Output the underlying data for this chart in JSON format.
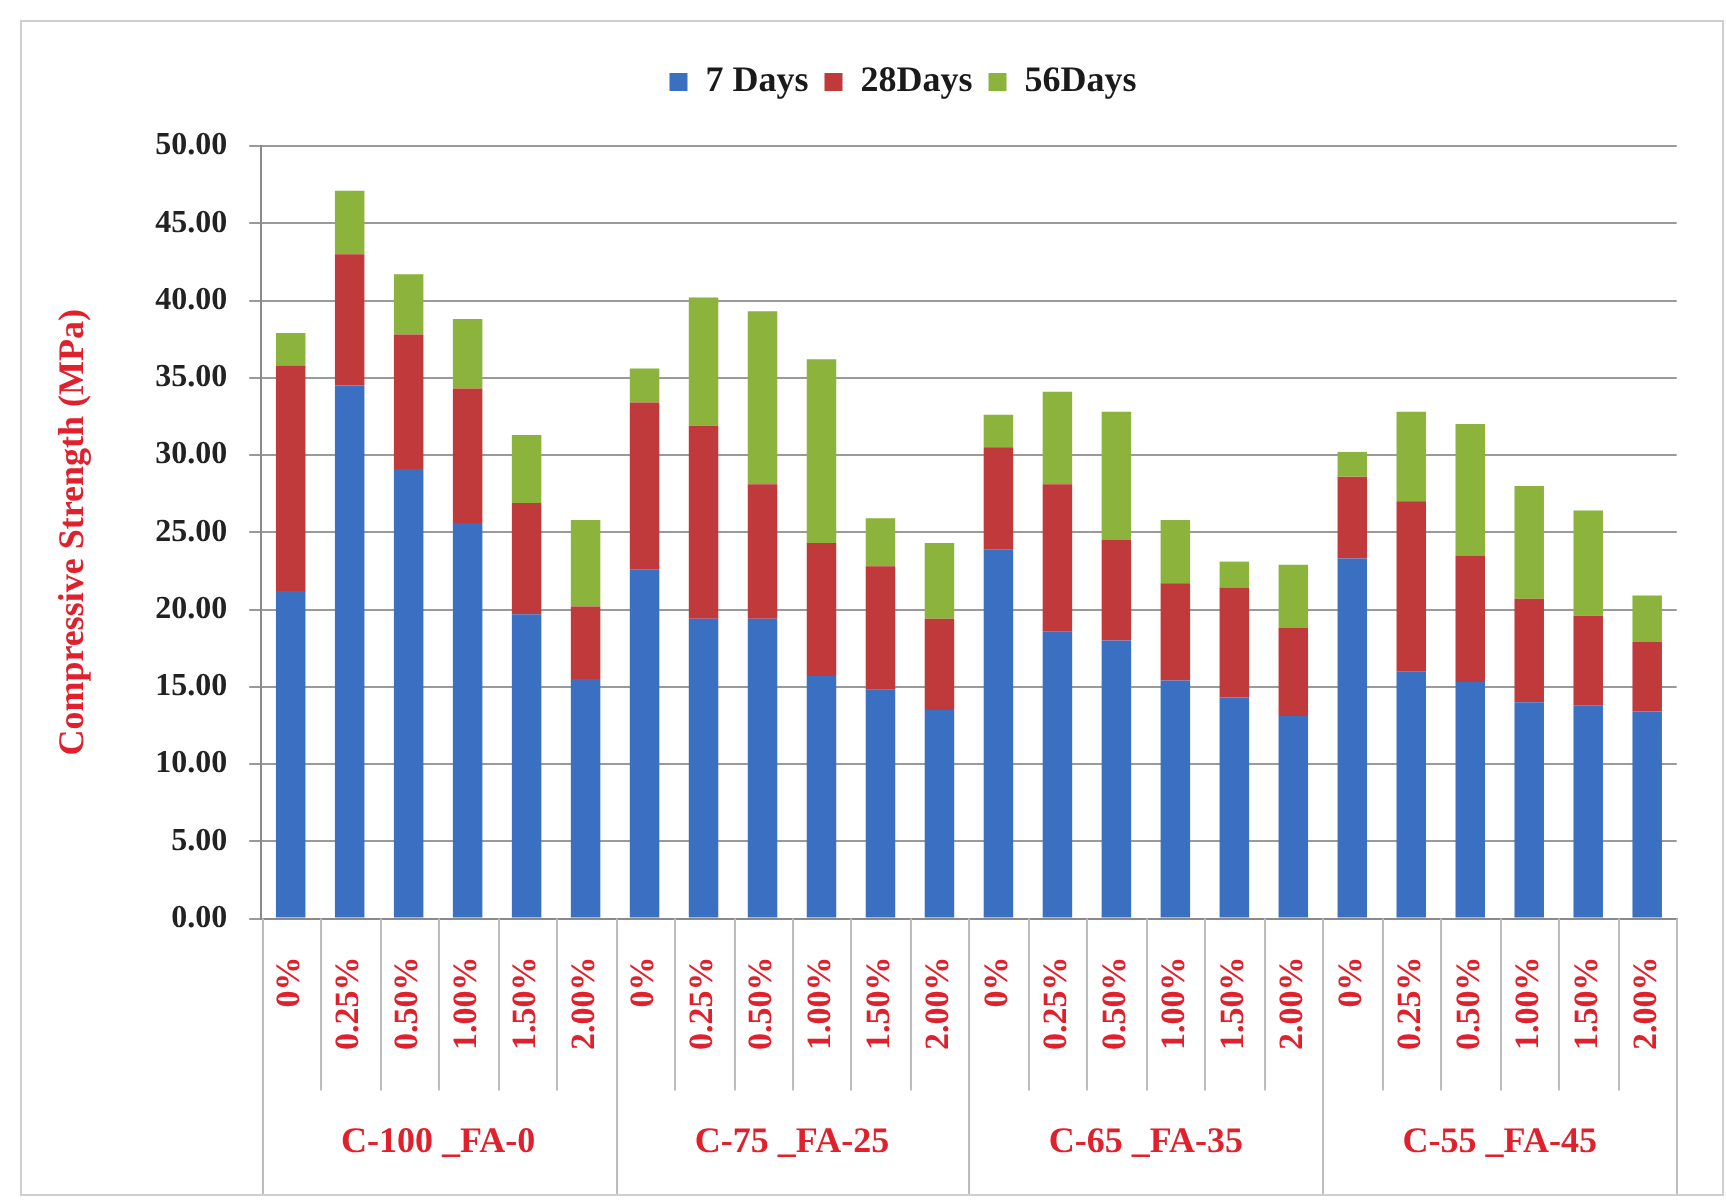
{
  "chart_data": {
    "type": "bar",
    "stacked": true,
    "categories": [
      "0%",
      "0.25%",
      "0.50%",
      "1.00%",
      "1.50%",
      "2.00%",
      "0%",
      "0.25%",
      "0.50%",
      "1.00%",
      "1.50%",
      "2.00%",
      "0%",
      "0.25%",
      "0.50%",
      "1.00%",
      "1.50%",
      "2.00%",
      "0%",
      "0.25%",
      "0.50%",
      "1.00%",
      "1.50%",
      "2.00%"
    ],
    "series": [
      {
        "name": "7 Days",
        "color": "#3a6fc2",
        "values": [
          21.2,
          34.5,
          29.1,
          25.6,
          19.7,
          15.5,
          22.6,
          19.4,
          19.4,
          15.7,
          14.8,
          13.5,
          23.9,
          18.6,
          18.0,
          15.4,
          14.3,
          13.1,
          23.3,
          16.0,
          15.3,
          14.0,
          13.8,
          13.4
        ]
      },
      {
        "name": "28Days",
        "color": "#c0393b",
        "values": [
          14.6,
          8.5,
          8.7,
          8.7,
          7.2,
          4.7,
          10.8,
          12.5,
          8.7,
          8.6,
          8.0,
          5.9,
          6.6,
          9.5,
          6.5,
          6.3,
          7.1,
          5.7,
          5.3,
          11.0,
          8.2,
          6.7,
          5.8,
          4.5
        ]
      },
      {
        "name": "56Days",
        "color": "#8cb43c",
        "values": [
          2.1,
          4.1,
          3.9,
          4.5,
          4.4,
          5.6,
          2.2,
          8.3,
          11.2,
          11.9,
          3.1,
          4.9,
          2.1,
          6.0,
          8.3,
          4.1,
          1.7,
          4.1,
          1.6,
          5.8,
          8.5,
          7.3,
          6.8,
          3.0
        ]
      }
    ],
    "ylabel": "Compressive Strength (MPa)",
    "ylim": [
      0,
      50
    ],
    "yticks": [
      {
        "value": 0,
        "label": "0.00"
      },
      {
        "value": 5,
        "label": "5.00"
      },
      {
        "value": 10,
        "label": "10.00"
      },
      {
        "value": 15,
        "label": "15.00"
      },
      {
        "value": 20,
        "label": "20.00"
      },
      {
        "value": 25,
        "label": "25.00"
      },
      {
        "value": 30,
        "label": "30.00"
      },
      {
        "value": 35,
        "label": "35.00"
      },
      {
        "value": 40,
        "label": "40.00"
      },
      {
        "value": 45,
        "label": "45.00"
      },
      {
        "value": 50,
        "label": "50.00"
      }
    ],
    "grid": "y",
    "legend": "top",
    "annotations": [
      "C-100 _FA-0",
      "C-75 _FA-25",
      "C-65 _FA-35",
      "C-55 _FA-45"
    ]
  }
}
